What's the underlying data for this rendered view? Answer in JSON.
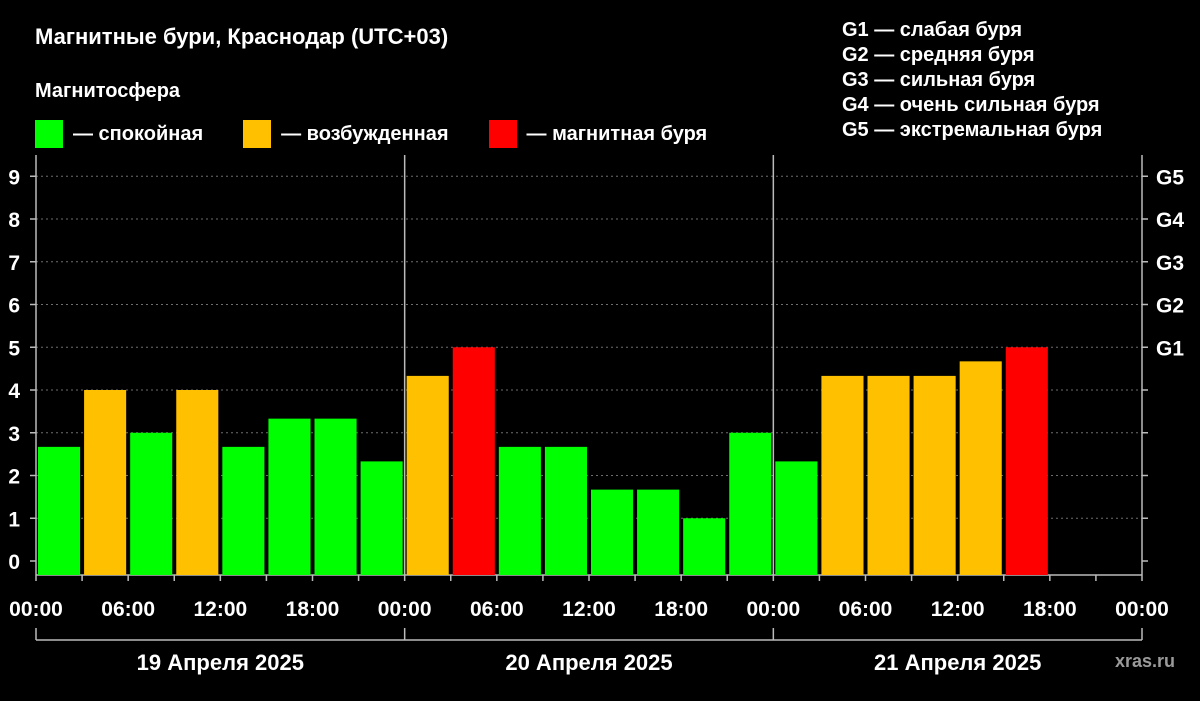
{
  "title": "Магнитные бури, Краснодар (UTC+03)",
  "subtitle": "Магнитосфера",
  "legend": [
    {
      "label": "— спокойная",
      "color": "#00ff00"
    },
    {
      "label": "— возбужденная",
      "color": "#ffc000"
    },
    {
      "label": "— магнитная буря",
      "color": "#ff0000"
    }
  ],
  "g_legend": [
    "G1 — слабая буря",
    "G2 — средняя буря",
    "G3 — сильная буря",
    "G4 — очень сильная буря",
    "G5 — экстремальная буря"
  ],
  "watermark": "xras.ru",
  "chart_data": {
    "type": "bar",
    "title": "Магнитные бури, Краснодар (UTC+03)",
    "ylim": [
      0,
      9
    ],
    "y_ticks": [
      "0",
      "1",
      "2",
      "3",
      "4",
      "5",
      "6",
      "7",
      "8",
      "9"
    ],
    "right_axis_labels": [
      {
        "value": 5,
        "label": "G1"
      },
      {
        "value": 6,
        "label": "G2"
      },
      {
        "value": 7,
        "label": "G3"
      },
      {
        "value": 8,
        "label": "G4"
      },
      {
        "value": 9,
        "label": "G5"
      }
    ],
    "x_tick_labels": [
      "00:00",
      "06:00",
      "12:00",
      "18:00",
      "00:00",
      "06:00",
      "12:00",
      "18:00",
      "00:00",
      "06:00",
      "12:00",
      "18:00",
      "00:00"
    ],
    "days": [
      "19 Апреля 2025",
      "20 Апреля 2025",
      "21 Апреля 2025"
    ],
    "grid": true,
    "colors": {
      "quiet": "#00ff00",
      "active": "#ffc000",
      "storm": "#ff0000"
    },
    "values": [
      2.67,
      4,
      3,
      4,
      2.67,
      3.33,
      3.33,
      2.33,
      4.33,
      5,
      2.67,
      2.67,
      1.67,
      1.67,
      1,
      3,
      2.33,
      4.33,
      4.33,
      4.33,
      4.67,
      5
    ],
    "levels": [
      "quiet",
      "active",
      "quiet",
      "active",
      "quiet",
      "quiet",
      "quiet",
      "quiet",
      "active",
      "storm",
      "quiet",
      "quiet",
      "quiet",
      "quiet",
      "quiet",
      "quiet",
      "quiet",
      "active",
      "active",
      "active",
      "active",
      "storm"
    ]
  }
}
